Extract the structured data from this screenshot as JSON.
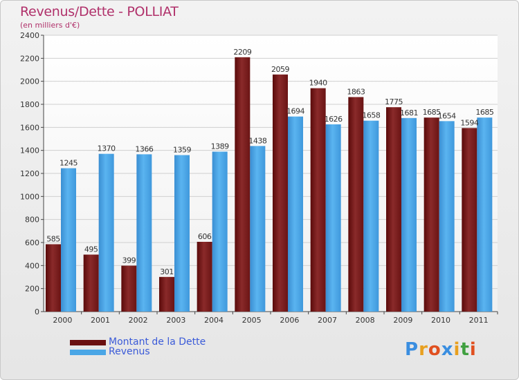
{
  "chart_data": {
    "type": "bar",
    "title": "Revenus/Dette - POLLIAT",
    "subtitle": "(en milliers d'€)",
    "categories": [
      "2000",
      "2001",
      "2002",
      "2003",
      "2004",
      "2005",
      "2006",
      "2007",
      "2008",
      "2009",
      "2010",
      "2011"
    ],
    "series": [
      {
        "name": "Montant de la Dette",
        "values": [
          585,
          495,
          399,
          301,
          606,
          2209,
          2059,
          1940,
          1863,
          1775,
          1685,
          1594
        ],
        "color": "#7a1a1a"
      },
      {
        "name": "Revenus",
        "values": [
          1245,
          1370,
          1366,
          1359,
          1389,
          1438,
          1694,
          1626,
          1658,
          1681,
          1654,
          1685
        ],
        "color": "#4aa6e6"
      }
    ],
    "ylim": [
      0,
      2400
    ],
    "yticks": [
      0,
      200,
      400,
      600,
      800,
      1000,
      1200,
      1400,
      1600,
      1800,
      2000,
      2200,
      2400
    ],
    "grid": true,
    "legend_position": "bottom-left"
  },
  "logo": {
    "text": "Proxiti",
    "letters": [
      "P",
      "r",
      "o",
      "x",
      "i",
      "t",
      "i"
    ],
    "colors": [
      "#3a8ee0",
      "#e8a020",
      "#e05020",
      "#3a8ee0",
      "#e8a020",
      "#40a040",
      "#e05020"
    ]
  }
}
